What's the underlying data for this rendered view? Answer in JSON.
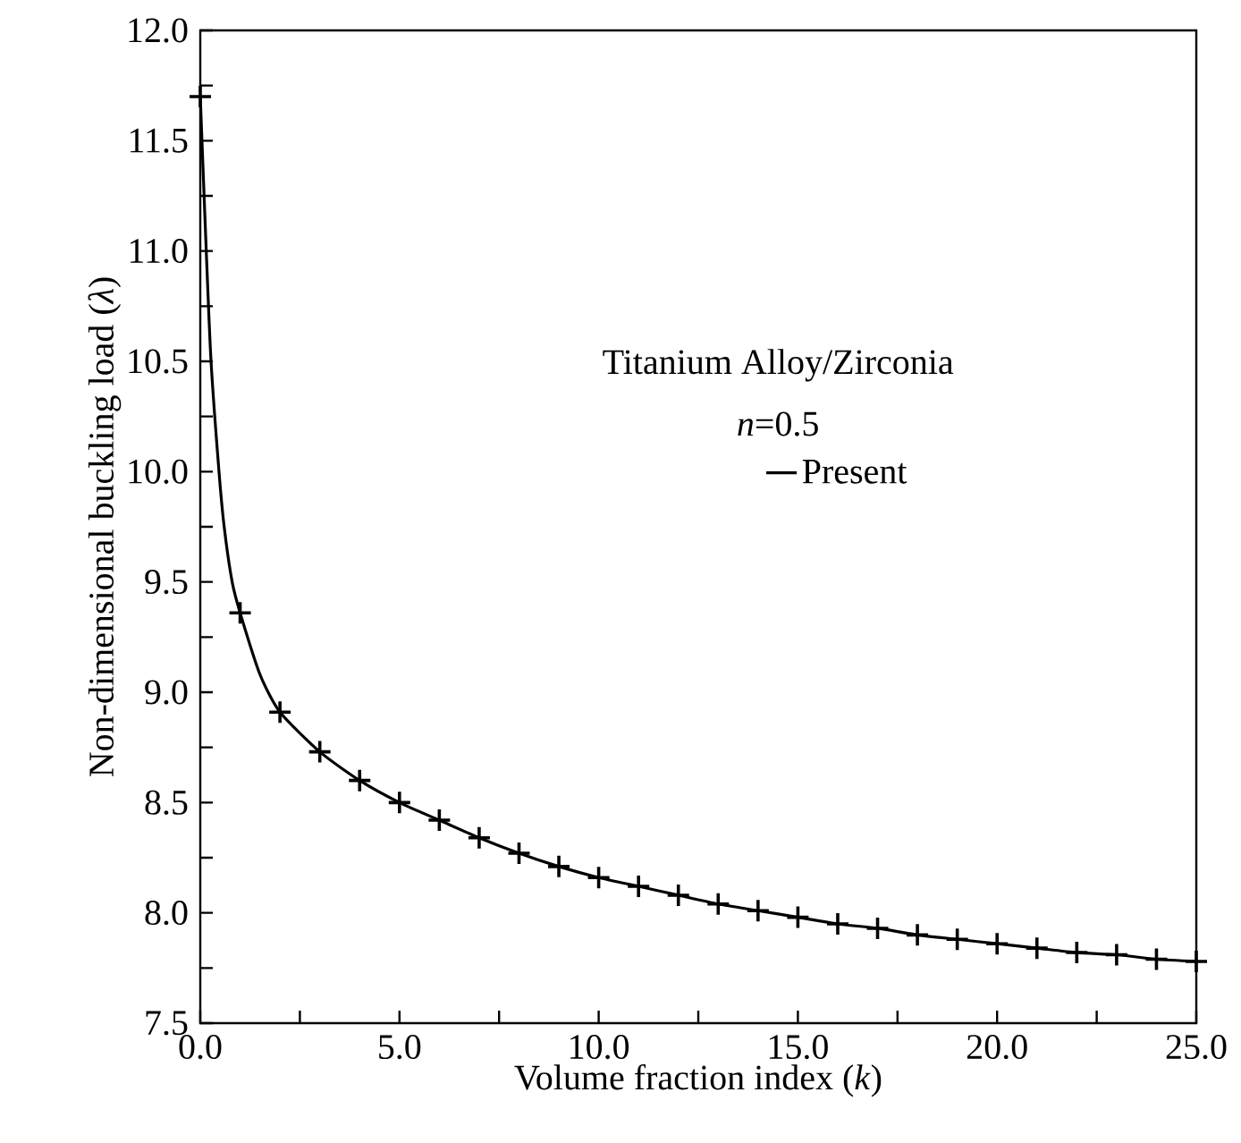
{
  "chart_data": {
    "type": "line",
    "xlabel": "Volume fraction index (*k*)",
    "ylabel": "Non-dimensional buckling load (*λ*)",
    "legend_title": "Titanium Alloy/Zirconia",
    "annotations": [
      "*n*=0.5"
    ],
    "legend": "center",
    "xlim": [
      0,
      25
    ],
    "ylim": [
      7.5,
      12
    ],
    "xticks": [
      {
        "value": 0,
        "label": "0.0"
      },
      {
        "value": 2.5,
        "label": null
      },
      {
        "value": 5,
        "label": "5.0"
      },
      {
        "value": 7.5,
        "label": null
      },
      {
        "value": 10,
        "label": "10.0"
      },
      {
        "value": 12.5,
        "label": null
      },
      {
        "value": 15,
        "label": "15.0"
      },
      {
        "value": 17.5,
        "label": null
      },
      {
        "value": 20,
        "label": "20.0"
      },
      {
        "value": 22.5,
        "label": null
      },
      {
        "value": 25,
        "label": "25.0"
      }
    ],
    "yticks": [
      7.5,
      {
        "value": 7.75,
        "label": null
      },
      {
        "value": 8,
        "label": "8.0"
      },
      {
        "value": 8.25,
        "label": null
      },
      8.5,
      {
        "value": 8.75,
        "label": null
      },
      {
        "value": 9,
        "label": "9.0"
      },
      {
        "value": 9.25,
        "label": null
      },
      9.5,
      {
        "value": 9.75,
        "label": null
      },
      {
        "value": 10,
        "label": "10.0"
      },
      {
        "value": 10.25,
        "label": null
      },
      10.5,
      {
        "value": 10.75,
        "label": null
      },
      {
        "value": 11,
        "label": "11.0"
      },
      {
        "value": 11.25,
        "label": null
      },
      11.5,
      {
        "value": 11.75,
        "label": null
      },
      {
        "value": 12,
        "label": "12.0"
      }
    ],
    "series": [
      {
        "name": "Present",
        "type": "line",
        "color": "#000000",
        "line_style": "solid",
        "marker": "none",
        "x": [
          0,
          0.15,
          0.27,
          0.47,
          0.6,
          0.8,
          1,
          1.5,
          2,
          3,
          4,
          5,
          6,
          7,
          8,
          9,
          10,
          11,
          12,
          13,
          14,
          15,
          16,
          17,
          18,
          19,
          20,
          21,
          22,
          23,
          24,
          25
        ],
        "values": [
          11.7,
          11.0,
          10.5,
          10.0,
          9.75,
          9.5,
          9.36,
          9.08,
          8.91,
          8.73,
          8.6,
          8.5,
          8.42,
          8.34,
          8.27,
          8.21,
          8.16,
          8.12,
          8.08,
          8.04,
          8.01,
          7.98,
          7.95,
          7.93,
          7.9,
          7.88,
          7.86,
          7.84,
          7.82,
          7.81,
          7.79,
          7.78
        ]
      },
      {
        "type": "scatter",
        "color": "#000000",
        "marker": "cross",
        "x": [
          0,
          1,
          2,
          3,
          4,
          5,
          6,
          7,
          8,
          9,
          10,
          11,
          12,
          13,
          14,
          15,
          16,
          17,
          18,
          19,
          20,
          21,
          22,
          23,
          24,
          25
        ],
        "values": [
          11.7,
          9.36,
          8.91,
          8.73,
          8.6,
          8.5,
          8.42,
          8.34,
          8.27,
          8.21,
          8.16,
          8.12,
          8.08,
          8.04,
          8.01,
          7.98,
          7.95,
          7.93,
          7.9,
          7.88,
          7.86,
          7.84,
          7.82,
          7.81,
          7.79,
          7.78
        ]
      }
    ]
  }
}
